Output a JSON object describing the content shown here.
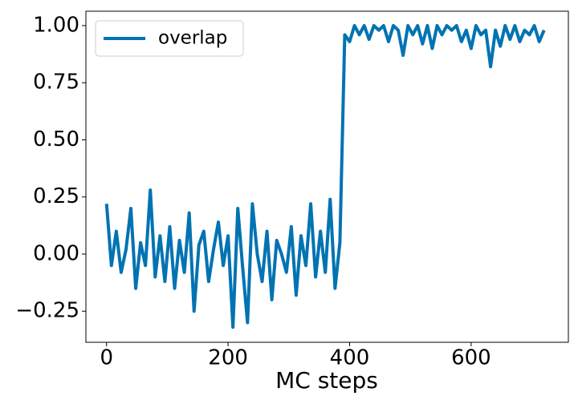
{
  "chart_data": {
    "type": "line",
    "x_label": "MC steps",
    "legend": "upper left",
    "x": [
      0,
      8,
      16,
      24,
      32,
      40,
      48,
      56,
      64,
      72,
      80,
      88,
      96,
      104,
      112,
      120,
      128,
      136,
      144,
      152,
      160,
      168,
      176,
      184,
      192,
      200,
      208,
      216,
      224,
      232,
      240,
      248,
      256,
      264,
      272,
      280,
      288,
      296,
      304,
      312,
      320,
      328,
      336,
      344,
      352,
      360,
      368,
      376,
      384,
      392,
      400,
      408,
      416,
      424,
      432,
      440,
      448,
      456,
      464,
      472,
      480,
      488,
      496,
      504,
      512,
      520,
      528,
      536,
      544,
      552,
      560,
      568,
      576,
      584,
      592,
      600,
      608,
      616,
      624,
      632,
      640,
      648,
      656,
      664,
      672,
      680,
      688,
      696,
      704,
      712,
      720
    ],
    "series": [
      {
        "name": "overlap",
        "color": "#0173b2",
        "values": [
          0.22,
          -0.05,
          0.1,
          -0.08,
          0.02,
          0.2,
          -0.15,
          0.05,
          -0.05,
          0.28,
          -0.1,
          0.08,
          -0.12,
          0.12,
          -0.15,
          0.06,
          -0.08,
          0.18,
          -0.25,
          0.04,
          0.1,
          -0.12,
          0.02,
          0.14,
          -0.05,
          0.08,
          -0.32,
          0.2,
          -0.06,
          -0.3,
          0.22,
          0.0,
          -0.12,
          0.1,
          -0.2,
          0.06,
          0.0,
          -0.08,
          0.12,
          -0.18,
          0.08,
          -0.05,
          0.22,
          -0.1,
          0.1,
          -0.08,
          0.24,
          -0.15,
          0.05,
          0.96,
          0.93,
          1.0,
          0.96,
          1.0,
          0.94,
          1.0,
          0.98,
          1.0,
          0.93,
          1.0,
          0.98,
          0.87,
          1.0,
          0.96,
          1.0,
          0.92,
          1.0,
          0.9,
          1.0,
          0.96,
          1.0,
          0.98,
          1.0,
          0.93,
          0.98,
          0.9,
          1.0,
          0.96,
          0.98,
          0.82,
          0.98,
          0.91,
          1.0,
          0.94,
          1.0,
          0.93,
          0.98,
          0.96,
          1.0,
          0.93,
          0.98
        ]
      }
    ],
    "xlim": [
      -34,
      760
    ],
    "ylim": [
      -0.386,
      1.063
    ],
    "xticks": [
      0,
      200,
      400,
      600
    ],
    "yticks": [
      {
        "value": -0.25,
        "label": "−0.25"
      },
      {
        "value": 0,
        "label": "0.00"
      },
      {
        "value": 0.25,
        "label": "0.25"
      },
      {
        "value": 0.5,
        "label": "0.50"
      },
      {
        "value": 0.75,
        "label": "0.75"
      },
      {
        "value": 1,
        "label": "1.00"
      }
    ]
  }
}
